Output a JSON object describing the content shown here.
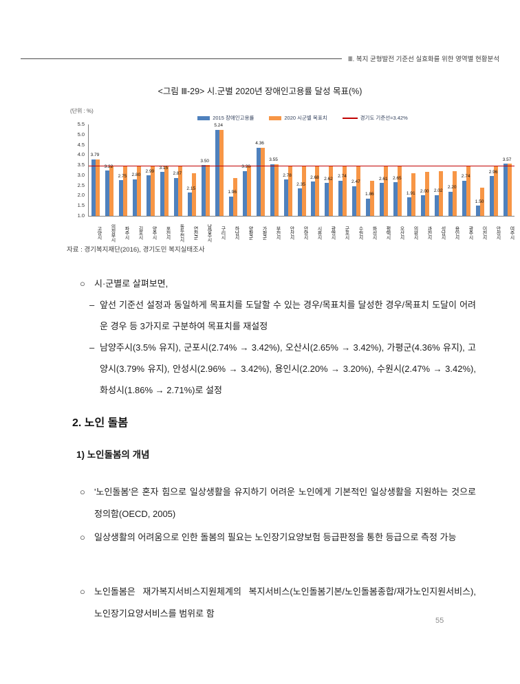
{
  "header": {
    "title": "Ⅲ. 복지 균형발전 기준선 실효화를 위한 영역별 현황분석"
  },
  "figure": {
    "title": "<그림 Ⅲ-29> 시.군별 2020년 장애인고용률 달성 목표(%)",
    "unit_label": "(단위 : %)",
    "source": "자료 : 경기복지재단(2016), 경기도민 복지실태조사"
  },
  "chart_data": {
    "type": "bar",
    "title": "시.군별 2020년 장애인고용률 달성 목표(%)",
    "xlabel": "",
    "ylabel": "%",
    "ylim": [
      1.0,
      5.5
    ],
    "ytick_step": 0.5,
    "grid": false,
    "legend_position": "top",
    "categories": [
      "고양시",
      "의정부시",
      "파주시",
      "김포시",
      "양주시",
      "포천시",
      "동두천시",
      "연천군",
      "남양주시",
      "구리시",
      "하남시",
      "양평군",
      "가평군",
      "부천시",
      "안산시",
      "안양시",
      "시흥시",
      "광명시",
      "군포시",
      "수원시",
      "화성시",
      "평택시",
      "오산시",
      "의왕시",
      "과천시",
      "성남시",
      "용인시",
      "광주시",
      "이천시",
      "안성시",
      "여주시"
    ],
    "series": [
      {
        "name": "2015 장애인고용률",
        "color": "#4f81bd",
        "values": [
          3.79,
          3.22,
          2.75,
          2.8,
          2.99,
          3.15,
          2.87,
          2.15,
          3.5,
          5.24,
          1.96,
          3.2,
          4.36,
          3.55,
          2.78,
          2.35,
          2.68,
          2.62,
          2.74,
          2.47,
          1.86,
          2.61,
          2.65,
          1.91,
          2.0,
          2.02,
          2.2,
          2.74,
          1.5,
          2.96,
          3.57
        ]
      },
      {
        "name": "2020 시군별 목표치",
        "color": "#f79646",
        "values": [
          3.79,
          3.42,
          3.42,
          3.42,
          3.42,
          3.42,
          3.42,
          3.1,
          3.5,
          5.24,
          2.85,
          3.42,
          4.36,
          3.55,
          3.42,
          3.42,
          3.42,
          3.42,
          3.42,
          3.42,
          2.71,
          3.42,
          3.42,
          3.1,
          3.15,
          3.2,
          3.2,
          3.42,
          2.4,
          3.42,
          3.57
        ]
      }
    ],
    "value_labels": [
      "3.79",
      "3.22",
      "2.75",
      "2.80",
      "2.99",
      "3.15",
      "2.87",
      "2.15",
      "3.50",
      "5.24",
      "1.96",
      "3.20",
      "4.36",
      "3.55",
      "2.78",
      "2.35",
      "2.68",
      "2.62",
      "2.74",
      "2.47",
      "1.86",
      "2.61",
      "2.65",
      "1.91",
      "2.00",
      "2.02",
      "2.20",
      "2.74",
      "1.50",
      "2.96",
      "3.57"
    ],
    "baseline": {
      "label": "경기도 기준선=3.42%",
      "value": 3.42,
      "color": "#c00000"
    }
  },
  "body": {
    "bullet1": {
      "marker": "○",
      "text": "시·군별로 살펴보면,"
    },
    "sub1": {
      "marker": "–",
      "text": "앞선 기준선 설정과 동일하게 목표치를 도달할 수 있는 경우/목표치를 달성한 경우/목표치 도달이 어려운 경우 등 3가지로 구분하여 목표치를 재설정"
    },
    "sub2": {
      "marker": "–",
      "text": "남양주시(3.5% 유지), 군포시(2.74% → 3.42%), 오산시(2.65% → 3.42%), 가평군(4.36% 유지), 고양시(3.79% 유지), 안성시(2.96% → 3.42%), 용인시(2.20% → 3.20%), 수원시(2.47% → 3.42%), 화성시(1.86% → 2.71%)로 설정"
    }
  },
  "section": {
    "heading": "2. 노인 돌봄",
    "subheading": "1) 노인돌봄의 개념",
    "b1": {
      "marker": "○",
      "text": "'노인돌봄'은 혼자 힘으로 일상생활을 유지하기 어려운 노인에게 기본적인 일상생활을 지원하는 것으로 정의함(OECD, 2005)"
    },
    "b2": {
      "marker": "○",
      "text": "일상생활의 어려움으로 인한 돌봄의 필요는 노인장기요양보험 등급판정을 통한 등급으로 측정 가능"
    },
    "b3": {
      "marker": "○",
      "text": "노인돌봄은 재가복지서비스지원체계의 복지서비스(노인돌봄기본/노인돌봄종합/재가노인지원서비스), 노인장기요양서비스를 범위로 함"
    }
  },
  "page_number": "55"
}
